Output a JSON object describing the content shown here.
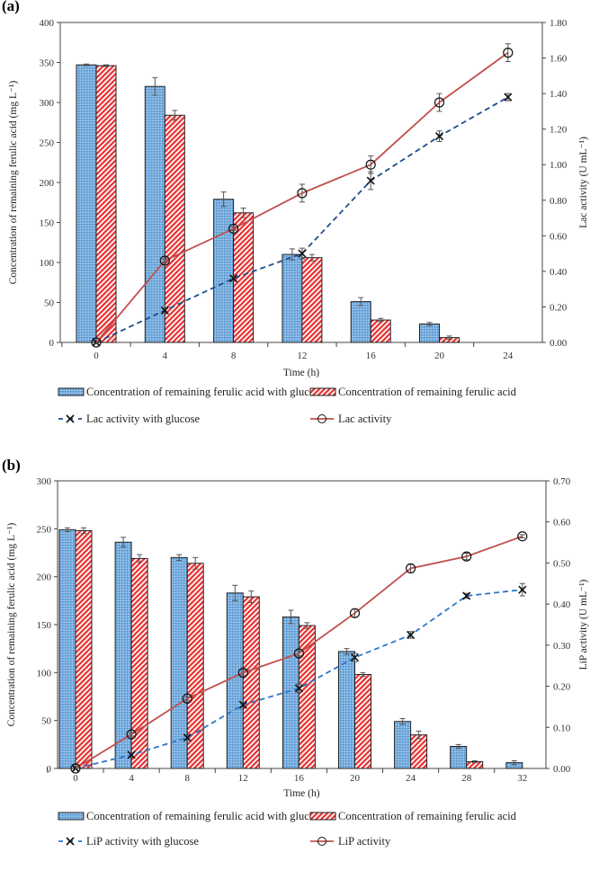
{
  "chart_data": [
    {
      "panel_label": "(a)",
      "type": "bar+line",
      "xlabel": "Time (h)",
      "ylabel": "Concentration of remaining ferulic acid (mg L⁻¹)",
      "y2label": "Lac activity (U mL⁻¹)",
      "categories": [
        "0",
        "4",
        "8",
        "12",
        "16",
        "20",
        "24"
      ],
      "ylim": [
        0,
        400
      ],
      "yticks": [
        "0",
        "50",
        "100",
        "150",
        "200",
        "250",
        "300",
        "350",
        "400"
      ],
      "y2lim": [
        0,
        1.8
      ],
      "y2ticks": [
        "0.00",
        "0.20",
        "0.40",
        "0.60",
        "0.80",
        "1.00",
        "1.20",
        "1.40",
        "1.60",
        "1.80"
      ],
      "bars": [
        {
          "name": "Concentration of remaining ferulic acid with glucose",
          "color": "#5b9bd5",
          "values": [
            347,
            320,
            179,
            110,
            51,
            23,
            0
          ],
          "errors": [
            1,
            11,
            9,
            7,
            5,
            2,
            0
          ]
        },
        {
          "name": "Concentration of remaining ferulic acid",
          "color": "#e8302f",
          "values": [
            346,
            284,
            162,
            106,
            28,
            6,
            0
          ],
          "errors": [
            1,
            6,
            6,
            4,
            2,
            2,
            0
          ]
        }
      ],
      "lines": [
        {
          "name": "Lac activity with glucose",
          "color": "#1f4e8c",
          "style": "dashed",
          "marker": "x",
          "values": [
            0,
            0.18,
            0.36,
            0.5,
            0.91,
            1.16,
            1.38
          ],
          "errors": [
            0,
            0.01,
            0.01,
            0.03,
            0.05,
            0.03,
            0.02
          ]
        },
        {
          "name": "Lac activity",
          "color": "#c0504d",
          "style": "solid",
          "marker": "o",
          "values": [
            0,
            0.46,
            0.64,
            0.84,
            1.0,
            1.35,
            1.63
          ],
          "errors": [
            0,
            0.01,
            0.01,
            0.05,
            0.05,
            0.05,
            0.05
          ]
        }
      ],
      "legend": "bottom"
    },
    {
      "panel_label": "(b)",
      "type": "bar+line",
      "xlabel": "Time (h)",
      "ylabel": "Concentration of remaining ferulic acid (mg L⁻¹)",
      "y2label": "LiP activity (U mL⁻¹)",
      "categories": [
        "0",
        "4",
        "8",
        "12",
        "16",
        "20",
        "24",
        "28",
        "32"
      ],
      "ylim": [
        0,
        300
      ],
      "yticks": [
        "0",
        "50",
        "100",
        "150",
        "200",
        "250",
        "300"
      ],
      "y2lim": [
        0,
        0.7
      ],
      "y2ticks": [
        "0.00",
        "0.10",
        "0.20",
        "0.30",
        "0.40",
        "0.50",
        "0.60",
        "0.70"
      ],
      "bars": [
        {
          "name": "Concentration of remaining ferulic acid with glucose",
          "color": "#5b9bd5",
          "values": [
            249,
            236,
            220,
            183,
            158,
            122,
            49,
            23,
            6
          ],
          "errors": [
            2,
            5,
            3,
            8,
            7,
            3,
            3,
            2,
            2
          ]
        },
        {
          "name": "Concentration of remaining ferulic acid",
          "color": "#e8302f",
          "values": [
            248,
            219,
            214,
            179,
            149,
            98,
            35,
            7,
            0
          ],
          "errors": [
            3,
            4,
            6,
            6,
            3,
            2,
            4,
            1,
            0
          ]
        }
      ],
      "lines": [
        {
          "name": "LiP activity with glucose",
          "color": "#2e75c8",
          "style": "dashed",
          "marker": "x",
          "values": [
            0,
            0.033,
            0.075,
            0.155,
            0.195,
            0.27,
            0.325,
            0.42,
            0.435
          ],
          "errors": [
            0,
            0.005,
            0.006,
            0.005,
            0.01,
            0.01,
            0.008,
            0.006,
            0.015
          ]
        },
        {
          "name": "LiP activity",
          "color": "#c0504d",
          "style": "solid",
          "marker": "o",
          "values": [
            0,
            0.083,
            0.17,
            0.233,
            0.28,
            0.378,
            0.487,
            0.516,
            0.565
          ],
          "errors": [
            0,
            0.004,
            0.004,
            0.006,
            0.006,
            0.01,
            0.01,
            0.008,
            0.004
          ]
        }
      ],
      "legend": "bottom"
    }
  ]
}
